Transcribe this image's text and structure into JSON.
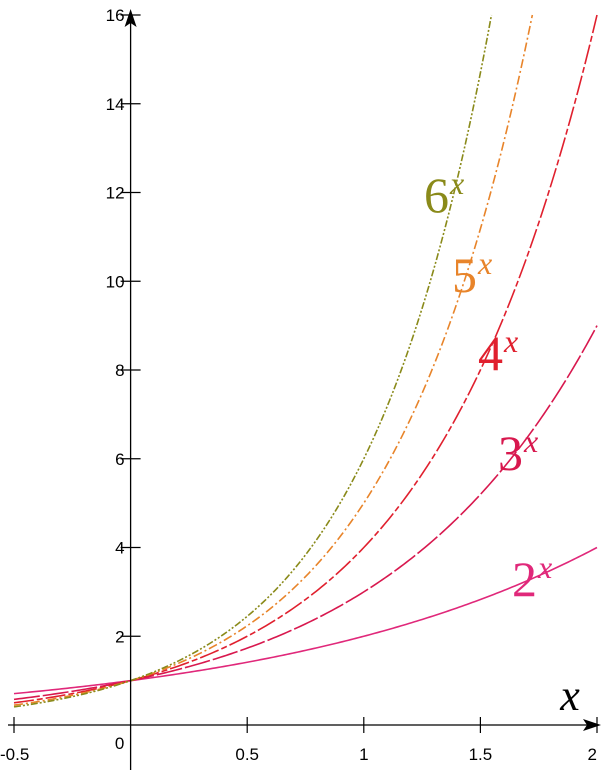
{
  "chart_data": {
    "type": "line",
    "title": "",
    "xlabel": "x",
    "ylabel": "",
    "xlim": [
      -0.5,
      2
    ],
    "ylim": [
      0,
      16
    ],
    "grid": false,
    "x_ticks": [
      -0.5,
      0,
      0.5,
      1,
      1.5,
      2
    ],
    "x_tick_labels": [
      "-0.5",
      "0",
      "0.5",
      "1",
      "1.5",
      "2"
    ],
    "y_ticks": [
      2,
      4,
      6,
      8,
      10,
      12,
      14,
      16
    ],
    "y_tick_labels": [
      "2",
      "4",
      "6",
      "8",
      "10",
      "12",
      "14",
      "16"
    ],
    "series": [
      {
        "name": "2^x",
        "base": "2",
        "exponent": "x",
        "color": "#e0287a",
        "dash": "solid",
        "x": [
          -0.5,
          -0.25,
          0,
          0.25,
          0.5,
          0.75,
          1,
          1.25,
          1.5,
          1.75,
          2
        ],
        "y": [
          0.707,
          0.841,
          1,
          1.189,
          1.414,
          1.682,
          2,
          2.378,
          2.828,
          3.364,
          4
        ]
      },
      {
        "name": "3^x",
        "base": "3",
        "exponent": "x",
        "color": "#d8184e",
        "dash": "long",
        "x": [
          -0.5,
          -0.25,
          0,
          0.25,
          0.5,
          0.75,
          1,
          1.25,
          1.5,
          1.75,
          2
        ],
        "y": [
          0.577,
          0.76,
          1,
          1.316,
          1.732,
          2.28,
          3,
          3.948,
          5.196,
          6.839,
          9
        ]
      },
      {
        "name": "4^x",
        "base": "4",
        "exponent": "x",
        "color": "#e0202e",
        "dash": "longshort",
        "x": [
          -0.5,
          -0.25,
          0,
          0.25,
          0.5,
          0.75,
          1,
          1.25,
          1.5,
          1.75,
          2
        ],
        "y": [
          0.5,
          0.707,
          1,
          1.414,
          2,
          2.828,
          4,
          5.657,
          8,
          11.314,
          16
        ]
      },
      {
        "name": "5^x",
        "base": "5",
        "exponent": "x",
        "color": "#e8842a",
        "dash": "dashdot",
        "x": [
          -0.5,
          -0.25,
          0,
          0.25,
          0.5,
          0.75,
          1,
          1.25,
          1.5,
          1.72
        ],
        "y": [
          0.447,
          0.669,
          1,
          1.495,
          2.236,
          3.344,
          5,
          7.477,
          11.18,
          16
        ]
      },
      {
        "name": "6^x",
        "base": "6",
        "exponent": "x",
        "color": "#8a8a1a",
        "dash": "dashdotdot",
        "x": [
          -0.5,
          -0.25,
          0,
          0.25,
          0.5,
          0.75,
          1,
          1.25,
          1.547
        ],
        "y": [
          0.408,
          0.639,
          1,
          1.565,
          2.449,
          3.834,
          6,
          9.391,
          16
        ]
      }
    ]
  }
}
